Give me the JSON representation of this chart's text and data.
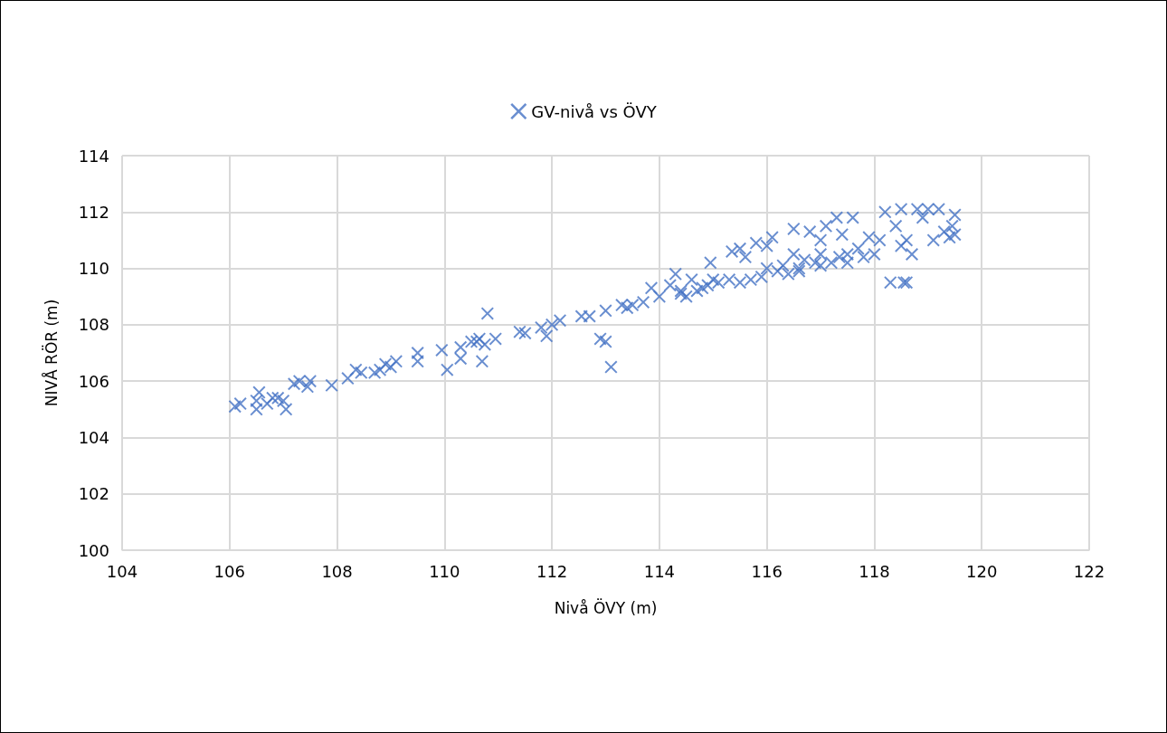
{
  "chart_data": {
    "type": "scatter",
    "xlabel": "Nivå ÖVY (m)",
    "ylabel": "NIVÅ RÖR (m)",
    "legend": "top",
    "grid": true,
    "marker": "cross",
    "xlim": [
      104,
      122
    ],
    "xticks": [
      104,
      106,
      108,
      110,
      112,
      114,
      116,
      118,
      120,
      122
    ],
    "ylim": [
      100,
      114
    ],
    "yticks": [
      100,
      102,
      104,
      106,
      108,
      110,
      112,
      114
    ],
    "series": [
      {
        "name": "GV-nivå vs ÖVY",
        "color": "#4472c4",
        "x": [
          106.1,
          106.2,
          106.5,
          106.5,
          106.55,
          106.7,
          106.8,
          106.9,
          107.0,
          107.05,
          107.2,
          107.3,
          107.45,
          107.5,
          107.9,
          108.2,
          108.35,
          108.45,
          108.7,
          108.8,
          108.9,
          109.0,
          109.1,
          109.5,
          109.5,
          109.95,
          110.05,
          110.3,
          110.3,
          110.5,
          110.6,
          110.65,
          110.7,
          110.75,
          110.8,
          110.95,
          111.4,
          111.5,
          111.8,
          111.9,
          112.0,
          112.15,
          112.55,
          112.7,
          112.9,
          113.0,
          113.1,
          113.0,
          113.3,
          113.4,
          113.5,
          113.7,
          113.85,
          114.0,
          114.2,
          114.3,
          114.4,
          114.5,
          114.6,
          114.7,
          114.8,
          114.9,
          115.0,
          114.95,
          115.1,
          115.3,
          115.35,
          115.5,
          115.5,
          115.6,
          115.7,
          115.8,
          115.9,
          116.0,
          116.0,
          116.1,
          116.2,
          116.3,
          116.4,
          116.5,
          116.5,
          116.6,
          116.7,
          116.8,
          116.9,
          117.0,
          117.0,
          117.1,
          117.2,
          117.3,
          117.35,
          117.4,
          117.5,
          117.6,
          117.7,
          117.8,
          117.9,
          118.0,
          118.1,
          118.2,
          118.3,
          118.4,
          118.5,
          118.5,
          118.55,
          118.6,
          118.6,
          118.7,
          118.8,
          118.9,
          119.0,
          119.1,
          119.2,
          119.3,
          119.4,
          119.45,
          119.5,
          119.5,
          116.6,
          117.0,
          117.5,
          114.4
        ],
        "values": [
          105.1,
          105.2,
          105.3,
          105.0,
          105.6,
          105.2,
          105.4,
          105.4,
          105.3,
          105.0,
          105.9,
          106.0,
          105.8,
          106.0,
          105.85,
          106.1,
          106.4,
          106.3,
          106.3,
          106.4,
          106.6,
          106.5,
          106.7,
          107.0,
          106.7,
          107.1,
          106.4,
          106.8,
          107.2,
          107.4,
          107.4,
          107.5,
          106.7,
          107.3,
          108.4,
          107.5,
          107.75,
          107.7,
          107.9,
          107.6,
          108.0,
          108.15,
          108.3,
          108.3,
          107.5,
          107.4,
          106.5,
          108.5,
          108.7,
          108.6,
          108.7,
          108.8,
          109.3,
          109.0,
          109.4,
          109.8,
          109.2,
          109.0,
          109.6,
          109.2,
          109.3,
          109.4,
          109.6,
          110.2,
          109.5,
          109.6,
          110.6,
          110.7,
          109.5,
          110.4,
          109.6,
          110.9,
          109.7,
          110.8,
          110.0,
          111.1,
          109.9,
          110.1,
          109.8,
          111.4,
          110.5,
          110.0,
          110.3,
          111.3,
          110.2,
          111.0,
          110.5,
          111.5,
          110.2,
          111.8,
          110.4,
          111.2,
          110.5,
          111.8,
          110.7,
          110.4,
          111.1,
          110.5,
          111.0,
          112.0,
          109.5,
          111.5,
          112.1,
          110.8,
          109.5,
          109.5,
          111.0,
          110.5,
          112.1,
          111.8,
          112.1,
          111.0,
          112.1,
          111.3,
          111.1,
          111.5,
          111.2,
          111.9,
          109.9,
          110.1,
          110.2,
          109.1
        ]
      }
    ]
  }
}
